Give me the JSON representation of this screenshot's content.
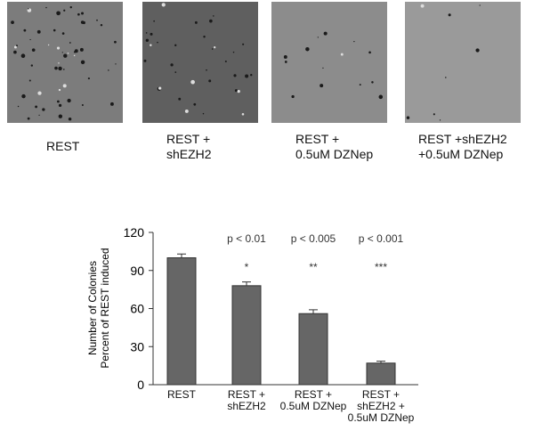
{
  "panels": [
    {
      "label": "REST"
    },
    {
      "label": "REST +\nshEZH2"
    },
    {
      "label": "REST +\n0.5uM DZNep"
    },
    {
      "label": "REST +shEZH2\n+0.5uM DZNep"
    }
  ],
  "chart_data": {
    "type": "bar",
    "y_label": "Number of Colonies\nPercent of REST  induced",
    "categories": [
      "REST",
      "REST +\nshEZH2",
      "REST +\n0.5uM DZNep",
      "REST +\nshEZH2 +\n0.5uM DZNep"
    ],
    "values": [
      100,
      78,
      56,
      17
    ],
    "errors": [
      3,
      3,
      3,
      1.5
    ],
    "p_values": [
      null,
      "p < 0.01",
      "p < 0.005",
      "p < 0.001"
    ],
    "significance": [
      null,
      "*",
      "**",
      "***"
    ],
    "color": "#666666",
    "ylim": [
      0,
      120
    ],
    "yticks": [
      0,
      30,
      60,
      90,
      120
    ],
    "grid": false
  }
}
